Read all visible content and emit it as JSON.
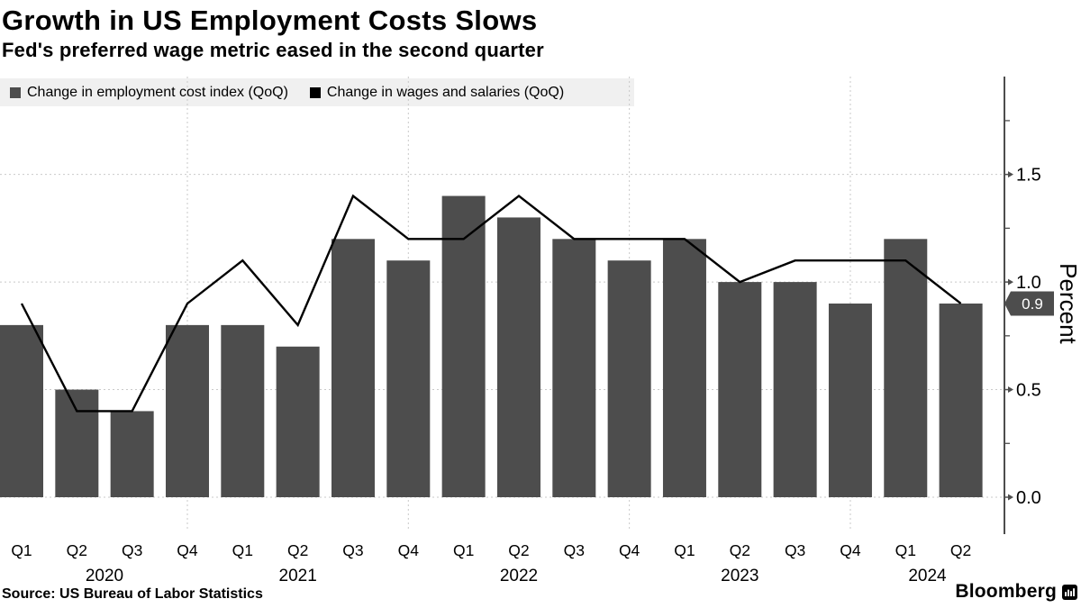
{
  "header": {
    "title": "Growth in US Employment Costs Slows",
    "subtitle": "Fed's preferred wage metric eased in the second quarter"
  },
  "legend": {
    "items": [
      {
        "label": "Change in employment cost index (QoQ)",
        "swatch_color": "#4d4d4d"
      },
      {
        "label": "Change in wages and salaries (QoQ)",
        "swatch_color": "#000000"
      }
    ]
  },
  "chart_data": {
    "type": "bar",
    "categories": [
      "Q1 2020",
      "Q2 2020",
      "Q3 2020",
      "Q4 2020",
      "Q1 2021",
      "Q2 2021",
      "Q3 2021",
      "Q4 2021",
      "Q1 2022",
      "Q2 2022",
      "Q3 2022",
      "Q4 2022",
      "Q1 2023",
      "Q2 2023",
      "Q3 2023",
      "Q4 2023",
      "Q1 2024",
      "Q2 2024"
    ],
    "quarter_labels": [
      "Q1",
      "Q2",
      "Q3",
      "Q4",
      "Q1",
      "Q2",
      "Q3",
      "Q4",
      "Q1",
      "Q2",
      "Q3",
      "Q4",
      "Q1",
      "Q2",
      "Q3",
      "Q4",
      "Q1",
      "Q2"
    ],
    "years": [
      {
        "label": "2020",
        "quarters": 4
      },
      {
        "label": "2021",
        "quarters": 4
      },
      {
        "label": "2022",
        "quarters": 4
      },
      {
        "label": "2023",
        "quarters": 4
      },
      {
        "label": "2024",
        "quarters": 2
      }
    ],
    "series": [
      {
        "name": "Change in employment cost index (QoQ)",
        "type": "bar",
        "color": "#4d4d4d",
        "values": [
          0.8,
          0.5,
          0.4,
          0.8,
          0.8,
          0.7,
          1.2,
          1.1,
          1.4,
          1.3,
          1.2,
          1.1,
          1.2,
          1.0,
          1.0,
          0.9,
          1.2,
          0.9
        ]
      },
      {
        "name": "Change in wages and salaries (QoQ)",
        "type": "line",
        "color": "#000000",
        "values": [
          0.9,
          0.4,
          0.4,
          0.9,
          1.1,
          0.8,
          1.4,
          1.2,
          1.2,
          1.4,
          1.2,
          1.2,
          1.2,
          1.0,
          1.1,
          1.1,
          1.1,
          0.9
        ]
      }
    ],
    "ylabel": "Percent",
    "xlabel": "",
    "ylim": [
      0,
      1.95
    ],
    "yticks": [
      0.0,
      0.5,
      1.0,
      1.5
    ],
    "yticks_minor": [
      0.25,
      0.75,
      1.25,
      1.75
    ],
    "grid": "dashed horizontal at yticks; dashed vertical at year boundaries",
    "legend_position": "top-left",
    "y_axis_side": "right",
    "last_value_marker": {
      "label": "0.9",
      "value": 0.9,
      "series": "Change in wages and salaries (QoQ)"
    }
  },
  "footer": {
    "source": "Source: US Bureau of Labor Statistics",
    "brand": "Bloomberg"
  },
  "colors": {
    "bar": "#4d4d4d",
    "line": "#000000",
    "grid": "#c9c9c9",
    "axis": "#4d4d4d",
    "marker_bg": "#4d4d4d",
    "marker_text": "#ffffff",
    "legend_bg": "#f0f0f0",
    "text": "#000000"
  }
}
